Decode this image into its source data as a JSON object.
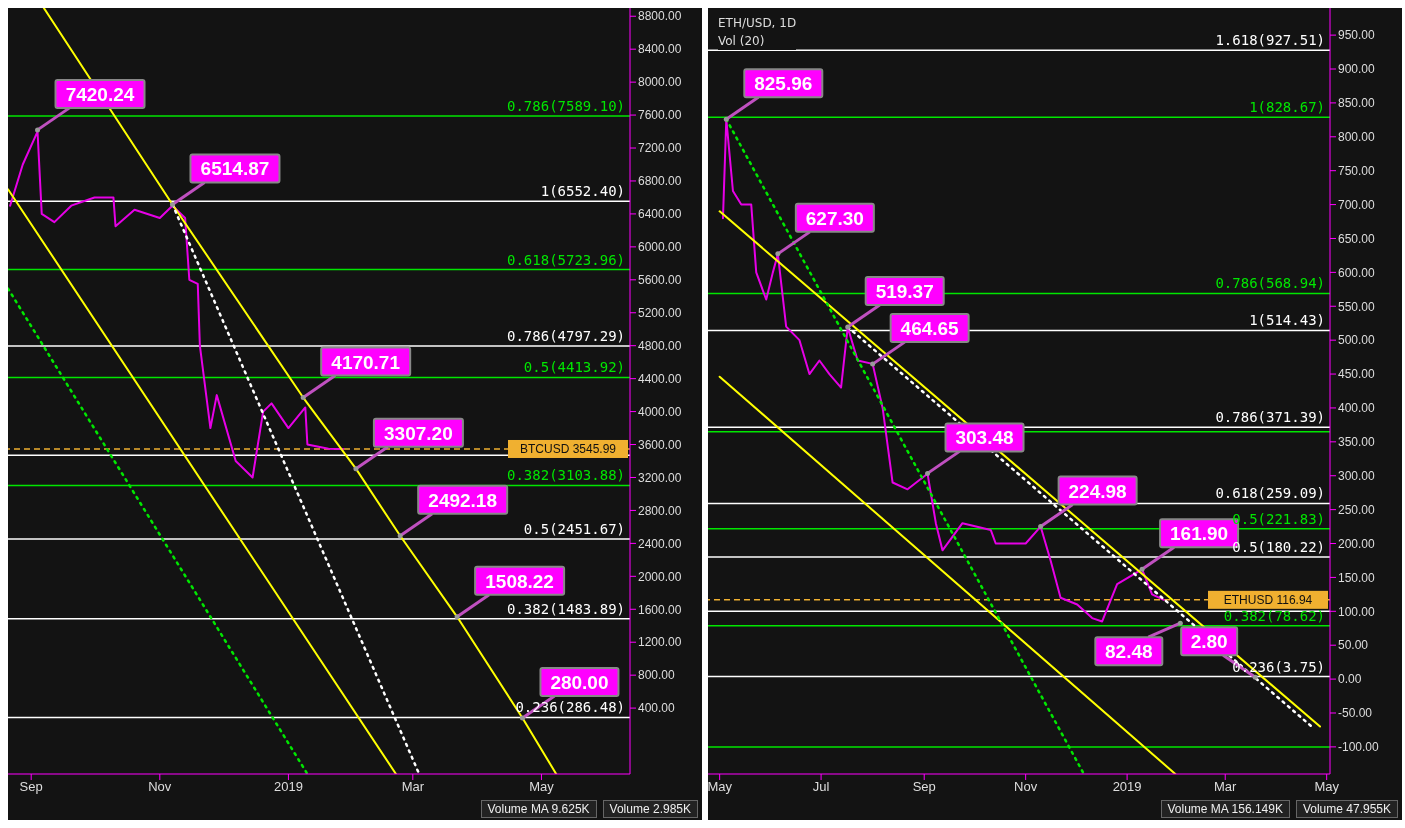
{
  "chart_data": [
    {
      "type": "line",
      "xlim": [
        "2018-08-21",
        "2019-06-12"
      ],
      "ylim": [
        -400,
        8900
      ],
      "xticks": [
        {
          "value": "2018-09-01",
          "label": "Sep"
        },
        {
          "value": "2018-11-01",
          "label": "Nov"
        },
        {
          "value": "2019-01-01",
          "label": "2019"
        },
        {
          "value": "2019-03-01",
          "label": "Mar"
        },
        {
          "value": "2019-05-01",
          "label": "May"
        }
      ],
      "yticks": [
        {
          "value": 400,
          "label": "400.00"
        },
        {
          "value": 800,
          "label": "800.00"
        },
        {
          "value": 1200,
          "label": "1200.00"
        },
        {
          "value": 1600,
          "label": "1600.00"
        },
        {
          "value": 2000,
          "label": "2000.00"
        },
        {
          "value": 2400,
          "label": "2400.00"
        },
        {
          "value": 2800,
          "label": "2800.00"
        },
        {
          "value": 3200,
          "label": "3200.00"
        },
        {
          "value": 3600,
          "label": "3600.00"
        },
        {
          "value": 4000,
          "label": "4000.00"
        },
        {
          "value": 4400,
          "label": "4400.00"
        },
        {
          "value": 4800,
          "label": "4800.00"
        },
        {
          "value": 5200,
          "label": "5200.00"
        },
        {
          "value": 5600,
          "label": "5600.00"
        },
        {
          "value": 6000,
          "label": "6000.00"
        },
        {
          "value": 6400,
          "label": "6400.00"
        },
        {
          "value": 6800,
          "label": "6800.00"
        },
        {
          "value": 7200,
          "label": "7200.00"
        },
        {
          "value": 7600,
          "label": "7600.00"
        },
        {
          "value": 8000,
          "label": "8000.00"
        },
        {
          "value": 8400,
          "label": "8400.00"
        },
        {
          "value": 8800,
          "label": "8800.00"
        }
      ],
      "series": [
        {
          "color": "#e600e6",
          "line_style": "solid",
          "x": [
            "2018-08-22",
            "2018-08-28",
            "2018-09-04",
            "2018-09-06",
            "2018-09-12",
            "2018-09-20",
            "2018-10-01",
            "2018-10-10",
            "2018-10-11",
            "2018-10-20",
            "2018-11-01",
            "2018-11-07",
            "2018-11-13",
            "2018-11-15",
            "2018-11-19",
            "2018-11-20",
            "2018-11-25",
            "2018-11-28",
            "2018-12-07",
            "2018-12-15",
            "2018-12-20",
            "2018-12-24",
            "2019-01-01",
            "2019-01-09",
            "2019-01-10",
            "2019-01-20",
            "2019-01-27"
          ],
          "values": [
            6500,
            7000,
            7400,
            6400,
            6300,
            6500,
            6600,
            6600,
            6250,
            6450,
            6350,
            6500,
            6350,
            5600,
            5550,
            4800,
            3800,
            4200,
            3400,
            3200,
            4000,
            4100,
            3800,
            4050,
            3600,
            3550,
            3546
          ]
        },
        {
          "color": "#ffff00",
          "line_style": "solid",
          "x": [
            "2018-09-07",
            "2018-11-07",
            "2019-01-08",
            "2019-02-02",
            "2019-02-23",
            "2019-03-22",
            "2019-04-22",
            "2019-05-08"
          ],
          "values": [
            8900,
            6514.87,
            4170.71,
            3307.2,
            2492.18,
            1508.22,
            280.0,
            -400
          ]
        },
        {
          "color": "#ffff00",
          "line_style": "solid",
          "x": [
            "2018-08-21",
            "2019-02-21"
          ],
          "values": [
            6700,
            -400
          ]
        },
        {
          "color": "#ffffff",
          "line_style": "dotted",
          "x": [
            "2018-11-07",
            "2019-03-04"
          ],
          "values": [
            6514.87,
            -400
          ]
        },
        {
          "color": "#00e600",
          "line_style": "dotted",
          "x": [
            "2018-08-21",
            "2019-01-10"
          ],
          "values": [
            5494,
            -400
          ]
        }
      ],
      "ref_lines": [
        {
          "axis": "y",
          "value": 7589.1,
          "label": "0.786(7589.10)",
          "color": "#00e600",
          "line_style": "solid"
        },
        {
          "axis": "y",
          "value": 6552.4,
          "label": "1(6552.40)",
          "color": "#ffffff",
          "line_style": "solid"
        },
        {
          "axis": "y",
          "value": 5723.96,
          "label": "0.618(5723.96)",
          "color": "#00e600",
          "line_style": "solid"
        },
        {
          "axis": "y",
          "value": 4797.29,
          "label": "0.786(4797.29)",
          "color": "#ffffff",
          "line_style": "solid"
        },
        {
          "axis": "y",
          "value": 4413.92,
          "label": "0.5(4413.92)",
          "color": "#00e600",
          "line_style": "solid"
        },
        {
          "axis": "y",
          "value": 3471,
          "color": "#ffffff",
          "line_style": "solid"
        },
        {
          "axis": "y",
          "value": 3103.88,
          "label": "0.382(3103.88)",
          "color": "#00e600",
          "line_style": "solid"
        },
        {
          "axis": "y",
          "value": 2451.67,
          "label": "0.5(2451.67)",
          "color": "#ffffff",
          "line_style": "solid"
        },
        {
          "axis": "y",
          "value": 1483.89,
          "label": "0.382(1483.89)",
          "color": "#ffffff",
          "line_style": "solid"
        },
        {
          "axis": "y",
          "value": 286.48,
          "label": "0.236(286.48)",
          "color": "#ffffff",
          "line_style": "solid"
        },
        {
          "axis": "y",
          "value": 3545.99,
          "label": "BTCUSD 3545.99",
          "color": "#f0b030",
          "line_style": "dashed"
        }
      ],
      "annotations": [
        {
          "text": "7420.24",
          "x": "2018-09-04",
          "y": 7420.24
        },
        {
          "text": "6514.87",
          "x": "2018-11-07",
          "y": 6514.87
        },
        {
          "text": "4170.71",
          "x": "2019-01-08",
          "y": 4170.71
        },
        {
          "text": "3307.20",
          "x": "2019-02-02",
          "y": 3307.2
        },
        {
          "text": "2492.18",
          "x": "2019-02-23",
          "y": 2492.18
        },
        {
          "text": "1508.22",
          "x": "2019-03-22",
          "y": 1508.22
        },
        {
          "text": "280.00",
          "x": "2019-04-22",
          "y": 280.0
        },
        "Volume MA 9.625K",
        "Volume 2.985K"
      ]
    },
    {
      "type": "line",
      "title": "ETH/USD, 1D",
      "subtitle": "Vol (20)",
      "xlim": [
        "2018-04-24",
        "2019-05-03"
      ],
      "ylim": [
        -140,
        990
      ],
      "xticks": [
        {
          "value": "2018-05-01",
          "label": "May"
        },
        {
          "value": "2018-07-01",
          "label": "Jul"
        },
        {
          "value": "2018-09-01",
          "label": "Sep"
        },
        {
          "value": "2018-11-01",
          "label": "Nov"
        },
        {
          "value": "2019-01-01",
          "label": "2019"
        },
        {
          "value": "2019-03-01",
          "label": "Mar"
        },
        {
          "value": "2019-05-01",
          "label": "May"
        }
      ],
      "yticks": [
        {
          "value": -100,
          "label": "-100.00"
        },
        {
          "value": -50,
          "label": "-50.00"
        },
        {
          "value": 0,
          "label": "0.00"
        },
        {
          "value": 50,
          "label": "50.00"
        },
        {
          "value": 100,
          "label": "100.00"
        },
        {
          "value": 150,
          "label": "150.00"
        },
        {
          "value": 200,
          "label": "200.00"
        },
        {
          "value": 250,
          "label": "250.00"
        },
        {
          "value": 300,
          "label": "300.00"
        },
        {
          "value": 350,
          "label": "350.00"
        },
        {
          "value": 400,
          "label": "400.00"
        },
        {
          "value": 450,
          "label": "450.00"
        },
        {
          "value": 500,
          "label": "500.00"
        },
        {
          "value": 550,
          "label": "550.00"
        },
        {
          "value": 600,
          "label": "600.00"
        },
        {
          "value": 650,
          "label": "650.00"
        },
        {
          "value": 700,
          "label": "700.00"
        },
        {
          "value": 750,
          "label": "750.00"
        },
        {
          "value": 800,
          "label": "800.00"
        },
        {
          "value": 850,
          "label": "850.00"
        },
        {
          "value": 900,
          "label": "900.00"
        },
        {
          "value": 950,
          "label": "950.00"
        }
      ],
      "series": [
        {
          "color": "#e600e6",
          "line_style": "solid",
          "x": [
            "2018-05-03",
            "2018-05-05",
            "2018-05-09",
            "2018-05-14",
            "2018-05-20",
            "2018-05-23",
            "2018-05-29",
            "2018-06-02",
            "2018-06-05",
            "2018-06-10",
            "2018-06-18",
            "2018-06-24",
            "2018-06-30",
            "2018-07-06",
            "2018-07-13",
            "2018-07-17",
            "2018-07-23",
            "2018-08-01",
            "2018-08-07",
            "2018-08-13",
            "2018-08-22",
            "2018-09-03",
            "2018-09-08",
            "2018-09-12",
            "2018-09-24",
            "2018-10-11",
            "2018-10-14",
            "2018-11-01",
            "2018-11-10",
            "2018-11-16",
            "2018-11-22",
            "2018-12-02",
            "2018-12-11",
            "2018-12-17",
            "2018-12-26",
            "2019-01-10",
            "2019-01-16",
            "2019-01-23"
          ],
          "values": [
            680,
            826,
            720,
            700,
            700,
            600,
            560,
            600,
            627,
            520,
            500,
            450,
            470,
            450,
            430,
            519,
            470,
            465,
            400,
            290,
            280,
            303,
            230,
            190,
            230,
            220,
            200,
            200,
            225,
            175,
            120,
            110,
            90,
            85,
            140,
            162,
            125,
            117
          ]
        },
        {
          "color": "#ffff00",
          "line_style": "solid",
          "x": [
            "2018-05-01",
            "2019-04-27"
          ],
          "values": [
            690,
            -70
          ]
        },
        {
          "color": "#ffff00",
          "line_style": "solid",
          "x": [
            "2018-05-01",
            "2019-01-30"
          ],
          "values": [
            446,
            -140
          ]
        },
        {
          "color": "#ffffff",
          "line_style": "dotted",
          "x": [
            "2018-07-17",
            "2019-04-22"
          ],
          "values": [
            519.37,
            -70
          ]
        },
        {
          "color": "#00e600",
          "line_style": "dotted",
          "x": [
            "2018-05-05",
            "2018-12-06"
          ],
          "values": [
            826,
            -140
          ]
        }
      ],
      "ref_lines": [
        {
          "axis": "y",
          "value": 927.51,
          "label": "1.618(927.51)",
          "color": "#ffffff",
          "line_style": "solid"
        },
        {
          "axis": "y",
          "value": 828.67,
          "label": "1(828.67)",
          "color": "#00e600",
          "line_style": "solid"
        },
        {
          "axis": "y",
          "value": 568.94,
          "label": "0.786(568.94)",
          "color": "#00e600",
          "line_style": "solid"
        },
        {
          "axis": "y",
          "value": 514.43,
          "label": "1(514.43)",
          "color": "#ffffff",
          "line_style": "solid"
        },
        {
          "axis": "y",
          "value": 371.39,
          "label": "0.786(371.39)",
          "color": "#ffffff",
          "line_style": "solid"
        },
        {
          "axis": "y",
          "value": 365,
          "color": "#00e600",
          "line_style": "solid"
        },
        {
          "axis": "y",
          "value": 259.09,
          "label": "0.618(259.09)",
          "color": "#ffffff",
          "line_style": "solid"
        },
        {
          "axis": "y",
          "value": 221.83,
          "label": "0.5(221.83)",
          "color": "#00e600",
          "line_style": "solid"
        },
        {
          "axis": "y",
          "value": 180.22,
          "label": "0.5(180.22)",
          "color": "#ffffff",
          "line_style": "solid"
        },
        {
          "axis": "y",
          "value": 100,
          "color": "#ffffff",
          "line_style": "solid"
        },
        {
          "axis": "y",
          "value": 78.62,
          "label": "0.382(78.62)",
          "color": "#00e600",
          "line_style": "solid"
        },
        {
          "axis": "y",
          "value": 3.75,
          "label": "0.236(3.75)",
          "color": "#ffffff",
          "line_style": "solid"
        },
        {
          "axis": "y",
          "value": -100,
          "color": "#00e600",
          "line_style": "solid"
        },
        {
          "axis": "y",
          "value": 116.94,
          "label": "ETHUSD 116.94",
          "color": "#f0b030",
          "line_style": "dashed"
        }
      ],
      "annotations": [
        {
          "text": "825.96",
          "x": "2018-05-05",
          "y": 825.96
        },
        {
          "text": "627.30",
          "x": "2018-06-05",
          "y": 627.3
        },
        {
          "text": "519.37",
          "x": "2018-07-17",
          "y": 519.37
        },
        {
          "text": "464.65",
          "x": "2018-08-01",
          "y": 464.65
        },
        {
          "text": "303.48",
          "x": "2018-09-03",
          "y": 303.48
        },
        {
          "text": "224.98",
          "x": "2018-11-10",
          "y": 224.98
        },
        {
          "text": "161.90",
          "x": "2019-01-10",
          "y": 161.9
        },
        {
          "text": "82.48",
          "x": "2019-02-02",
          "y": 82.48
        },
        {
          "text": "2.80",
          "x": "2019-03-19",
          "y": 2.8
        },
        "Volume MA 156.149K",
        "Volume 47.955K"
      ]
    }
  ]
}
